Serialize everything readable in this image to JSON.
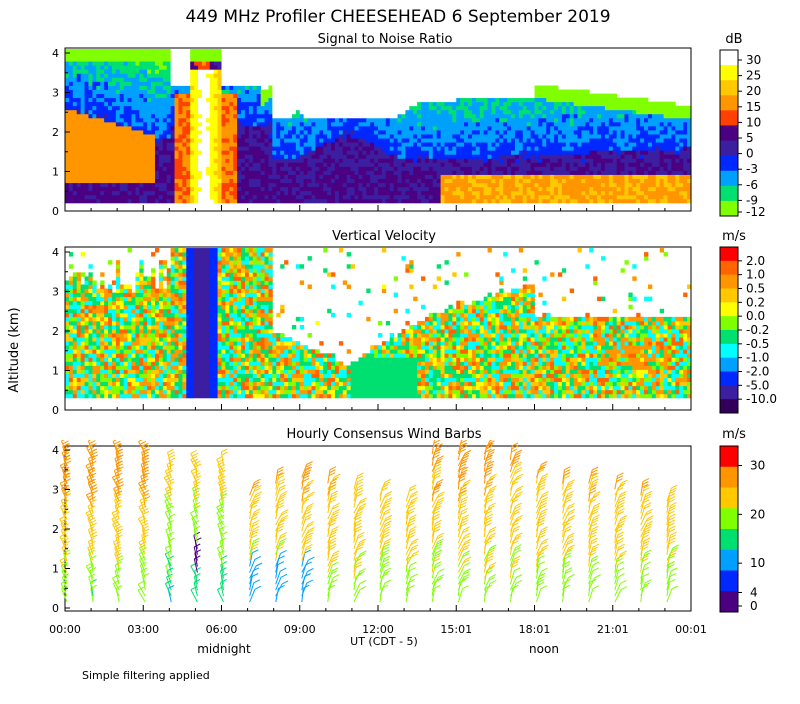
{
  "title": "449 MHz Profiler CHEESEHEAD  6 September 2019",
  "y_axis_label": "Altitude (km)",
  "footnote": "Simple filtering applied",
  "chart_data": [
    {
      "type": "heatmap",
      "title": "Signal to Noise Ratio",
      "unit": "dB",
      "ylabel": "Altitude (km)",
      "ylim": [
        0,
        4.1
      ],
      "yticks": [
        "0",
        "1",
        "2",
        "3",
        "4"
      ],
      "colorbar_labels": [
        "30",
        "25",
        "20",
        "15",
        "10",
        "5",
        "0",
        "-3",
        "-6",
        "-9",
        "-12"
      ],
      "colorbar_colors": [
        "#ffffff",
        "#ffff00",
        "#ffc800",
        "#ff9600",
        "#ff4000",
        "#4b0082",
        "#3c1ea0",
        "#0028ff",
        "#00a0ff",
        "#00e070",
        "#80ff00"
      ]
    },
    {
      "type": "heatmap",
      "title": "Vertical Velocity",
      "unit": "m/s",
      "ylabel": "Altitude (km)",
      "ylim": [
        0,
        4.1
      ],
      "yticks": [
        "0",
        "1",
        "2",
        "3",
        "4"
      ],
      "colorbar_labels": [
        "2.0",
        "1.0",
        "0.5",
        "0.2",
        "0.0",
        "-0.2",
        "-0.5",
        "-1.0",
        "-2.0",
        "-5.0",
        "-10.0"
      ],
      "colorbar_colors": [
        "#ff0000",
        "#ff6400",
        "#ff9600",
        "#ffc800",
        "#ffff00",
        "#80ff00",
        "#00e070",
        "#00ffff",
        "#00a0ff",
        "#0028ff",
        "#3c1ea0",
        "#32005a"
      ]
    },
    {
      "type": "scatter",
      "title": "Hourly Consensus Wind Barbs",
      "unit": "m/s",
      "ylabel": "Altitude (km)",
      "ylim": [
        0,
        4.1
      ],
      "yticks": [
        "0",
        "1",
        "2",
        "3",
        "4"
      ],
      "colorbar_labels": [
        "30",
        "20",
        "10",
        "4",
        "0"
      ],
      "colorbar_values": [
        30,
        20,
        10,
        4,
        0
      ],
      "colorbar_colors": [
        "#ff0000",
        "#ff9600",
        "#ffc800",
        "#80ff00",
        "#00e070",
        "#00a0ff",
        "#0028ff",
        "#4b0082"
      ]
    }
  ],
  "x_axis": {
    "ticks": [
      "00:00",
      "03:00",
      "06:00",
      "09:00",
      "12:00",
      "15:01",
      "18:01",
      "21:01",
      "00:01"
    ],
    "label": "UT  (CDT - 5)",
    "annotations": [
      "midnight",
      "noon"
    ]
  }
}
